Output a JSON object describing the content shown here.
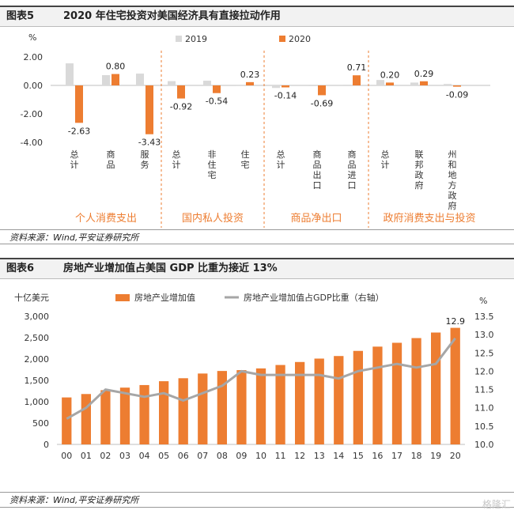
{
  "figure5": {
    "label": "图表5",
    "title": "2020 年住宅投资对美国经济具有直接拉动作用",
    "source": "资料来源：Wind,平安证券研究所"
  },
  "figure6": {
    "label": "图表6",
    "title": "房地产业增加值占美国 GDP 比重为接近 13%",
    "source": "资料来源：Wind,平安证券研究所"
  },
  "watermark": "格隆汇",
  "colors": {
    "orange": "#ED7D31",
    "gray": "#D9D9D9",
    "line": "#A6A6A6",
    "groupText": "#ED7D31"
  },
  "chart_data": [
    {
      "type": "bar",
      "y_unit": "%",
      "ylim": [
        -4.0,
        2.0
      ],
      "y_ticks": [
        "2.00",
        "0.00",
        "-2.00",
        "-4.00"
      ],
      "legend": [
        "2019",
        "2020"
      ],
      "legend_position": "top",
      "groups": [
        {
          "name": "个人消费支出",
          "categories": [
            "总计",
            "商品",
            "服务"
          ],
          "v2019": [
            1.55,
            0.72,
            0.83
          ],
          "v2020": [
            -2.63,
            0.8,
            -3.43
          ],
          "labels2020": [
            "-2.63",
            "0.80",
            "-3.43"
          ]
        },
        {
          "name": "国内私人投资",
          "categories": [
            "总计",
            "非住宅",
            "住宅"
          ],
          "v2019": [
            0.3,
            0.33,
            -0.04
          ],
          "v2020": [
            -0.92,
            -0.54,
            0.23
          ],
          "labels2020": [
            "-0.92",
            "-0.54",
            "0.23"
          ]
        },
        {
          "name": "商品净出口",
          "categories": [
            "总计",
            "商品出口",
            "商品进口"
          ],
          "v2019": [
            -0.18,
            -0.05,
            0.05
          ],
          "v2020": [
            -0.14,
            -0.69,
            0.71
          ],
          "labels2020": [
            "-0.14",
            "-0.69",
            "0.71"
          ]
        },
        {
          "name": "政府消费支出与投资",
          "categories": [
            "总计",
            "联邦政府",
            "州和地方政府"
          ],
          "v2019": [
            0.38,
            0.2,
            0.1
          ],
          "v2020": [
            0.2,
            0.29,
            -0.09
          ],
          "labels2020": [
            "0.20",
            "0.29",
            "-0.09"
          ]
        }
      ]
    },
    {
      "type": "bar+line",
      "categories": [
        "00",
        "01",
        "02",
        "03",
        "04",
        "05",
        "06",
        "07",
        "08",
        "09",
        "10",
        "11",
        "12",
        "13",
        "14",
        "15",
        "16",
        "17",
        "18",
        "19",
        "20"
      ],
      "series": [
        {
          "name": "房地产业增加值",
          "axis": "left",
          "values": [
            1100,
            1180,
            1270,
            1330,
            1390,
            1480,
            1550,
            1660,
            1720,
            1740,
            1780,
            1860,
            1930,
            2010,
            2070,
            2190,
            2290,
            2380,
            2490,
            2620,
            2730
          ]
        },
        {
          "name": "房地产业增加值占GDP比重（右轴）",
          "axis": "right",
          "values": [
            10.7,
            11.0,
            11.5,
            11.4,
            11.3,
            11.4,
            11.2,
            11.4,
            11.6,
            12.0,
            11.9,
            11.9,
            11.9,
            11.9,
            11.8,
            12.0,
            12.1,
            12.2,
            12.1,
            12.2,
            12.9
          ]
        }
      ],
      "y_left": {
        "unit": "十亿美元",
        "ylim": [
          0,
          3000
        ],
        "ticks": [
          "0",
          "500",
          "1,000",
          "1,500",
          "2,000",
          "2,500",
          "3,000"
        ]
      },
      "y_right": {
        "unit": "%",
        "ylim": [
          10.0,
          13.5
        ],
        "ticks": [
          "10.0",
          "10.5",
          "11.0",
          "11.5",
          "12.0",
          "12.5",
          "13.0",
          "13.5"
        ]
      },
      "annotation": "12.9",
      "legend_position": "top"
    }
  ]
}
